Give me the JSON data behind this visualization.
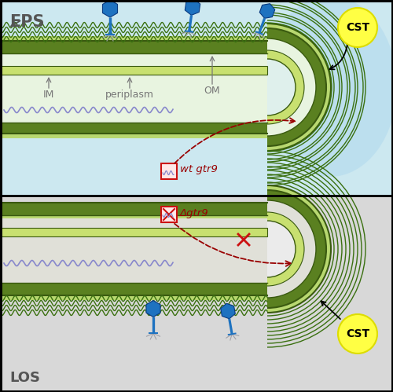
{
  "fig_width": 5.0,
  "fig_height": 4.99,
  "dpi": 100,
  "top_bg": "#cce8f0",
  "bottom_bg": "#d8d8d8",
  "cell_interior_top": "#dff0ec",
  "cell_interior_bot": "#ebebeb",
  "capsule_color": "#b0d8ee",
  "om_dark": "#5a8020",
  "om_light": "#b8d870",
  "om_line": "#3a5a10",
  "im_color": "#c8e070",
  "wavy_green": "#3a7010",
  "im_wavy_color": "#8888cc",
  "phage_head": "#1e72c0",
  "phage_dark": "#0a3a80",
  "phage_fiber": "#a0a0a8",
  "cst_fill": "#ffff44",
  "cst_edge": "#dddd00",
  "red_dark": "#990000",
  "red_box": "#cc1111",
  "gray_label": "#777777",
  "eps_color": "#555555",
  "los_color": "#555555",
  "border_color": "#000000",
  "wt_text": "wt gtr9",
  "delta_text": "Δgtr9",
  "eps_text": "EPS",
  "los_text": "LOS",
  "im_text": "IM",
  "peripl_text": "periplasm",
  "om_text": "OM",
  "cst_text": "CST"
}
